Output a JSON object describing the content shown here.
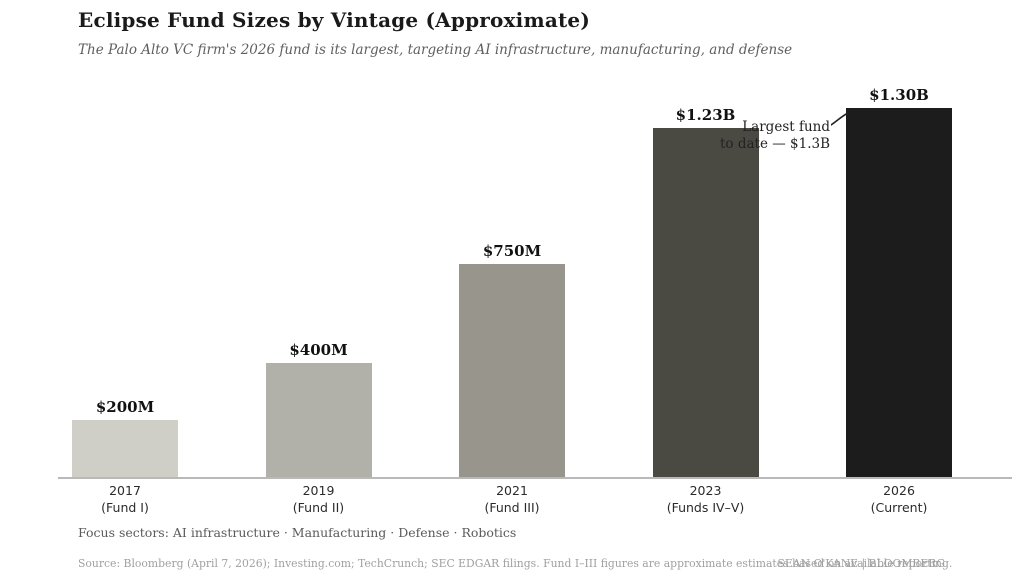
{
  "header": {},
  "chart_data": {
    "type": "bar",
    "title": "Eclipse Fund Sizes by Vintage (Approximate)",
    "subtitle": "The Palo Alto VC firm's 2026 fund is its largest, targeting AI infrastructure, manufacturing, and defense",
    "categories": [
      "2017 (Fund I)",
      "2019 (Fund II)",
      "2021 (Fund III)",
      "2023 (Funds IV–V)",
      "2026 (Current)"
    ],
    "tick_line1": [
      "2017",
      "2019",
      "2021",
      "2023",
      "2026"
    ],
    "tick_line2": [
      "(Fund I)",
      "(Fund II)",
      "(Fund III)",
      "(Funds IV–V)",
      "(Current)"
    ],
    "values_usd_millions": [
      200,
      400,
      750,
      1230,
      1300
    ],
    "value_labels": [
      "$200M",
      "$400M",
      "$750M",
      "$1.23B",
      "$1.30B"
    ],
    "bar_colors": [
      "#cfcfc8",
      "#b1b1aa",
      "#97958c",
      "#4a4a43",
      "#1c1c1c"
    ],
    "xlabel": "",
    "ylabel": "",
    "ylim": [
      0,
      1400
    ],
    "grid": false,
    "legend": "none",
    "annotation": {
      "line1": "Largest fund",
      "line2": "to date — $1.3B",
      "target_category": "2026 (Current)"
    }
  },
  "footer": {
    "focus_label": "Focus sectors:",
    "sectors": [
      "AI infrastructure",
      "Manufacturing",
      "Defense",
      "Robotics"
    ],
    "separator": "·",
    "source": "Source: Bloomberg (April 7, 2026); Investing.com; TechCrunch; SEC EDGAR filings. Fund I–III figures are approximate estimates based on available reporting.",
    "credit_overlay": "SEAN O'KANE | BLOOMBERG"
  }
}
